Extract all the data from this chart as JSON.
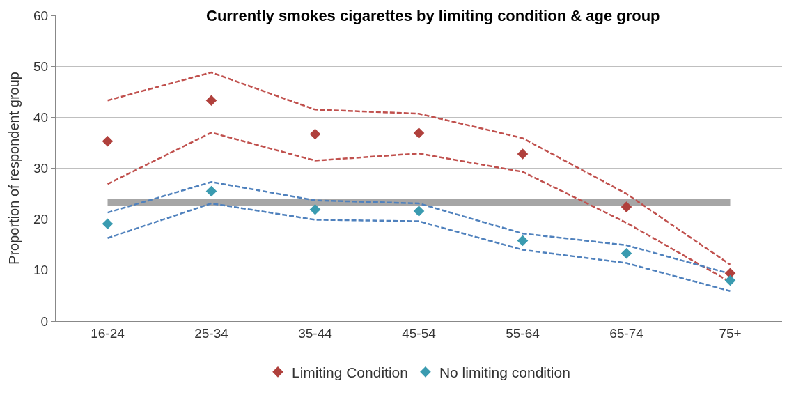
{
  "chart_data": {
    "type": "scatter",
    "title": "Currently smokes cigarettes by limiting condition & age group",
    "ylabel": "Proportion of respondent group",
    "categories": [
      "16-24",
      "25-34",
      "35-44",
      "45-54",
      "55-64",
      "65-74",
      "75+"
    ],
    "series": [
      {
        "name": "Limiting Condition",
        "color": "#b0403c",
        "marker": "diamond",
        "values": [
          35.3,
          43.3,
          36.7,
          36.9,
          32.8,
          22.4,
          9.4
        ]
      },
      {
        "name": "No limiting condition",
        "color": "#3a9bb0",
        "marker": "diamond",
        "values": [
          19.1,
          25.5,
          21.9,
          21.6,
          15.8,
          13.3,
          8.0
        ]
      },
      {
        "type": "line",
        "color": "#c0504d",
        "marker": "none",
        "line_style": "dashed",
        "values": [
          43.3,
          48.8,
          41.5,
          40.7,
          35.9,
          25.0,
          11.1
        ]
      },
      {
        "type": "line",
        "color": "#c0504d",
        "marker": "none",
        "line_style": "dashed",
        "values": [
          26.9,
          37.0,
          31.5,
          32.9,
          29.3,
          19.3,
          7.7
        ]
      },
      {
        "type": "line",
        "color": "#4f81bd",
        "marker": "none",
        "line_style": "dashed",
        "values": [
          21.3,
          27.3,
          23.7,
          23.1,
          17.2,
          14.9,
          9.3
        ]
      },
      {
        "type": "line",
        "color": "#4f81bd",
        "marker": "none",
        "line_style": "dashed",
        "values": [
          16.3,
          23.1,
          19.9,
          19.6,
          14.0,
          11.4,
          5.9
        ]
      }
    ],
    "ref_lines": [
      {
        "axis": "y",
        "value": 23.3,
        "color": "#a6a6a6"
      }
    ],
    "ylim": [
      0,
      60
    ],
    "yticks": [
      0,
      10,
      20,
      30,
      40,
      50,
      60
    ],
    "grid": "y",
    "legend": "bottom"
  }
}
